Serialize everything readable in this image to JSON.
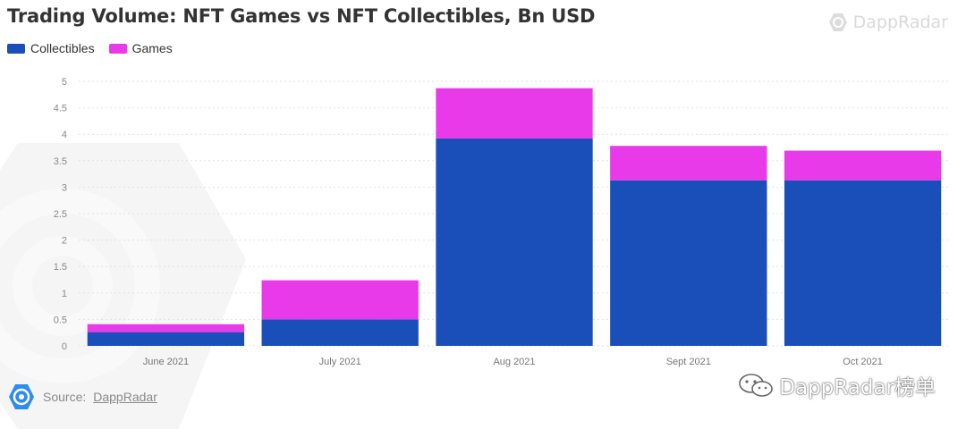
{
  "header": {
    "title": "Trading Volume: NFT Games vs NFT Collectibles, Bn USD",
    "brand": "DappRadar"
  },
  "chart_data": {
    "type": "bar",
    "stacked": true,
    "categories": [
      "June 2021",
      "July 2021",
      "Aug 2021",
      "Sept 2021",
      "Oct 2021"
    ],
    "series": [
      {
        "name": "Collectibles",
        "color": "#1a4fba",
        "values": [
          0.26,
          0.5,
          3.92,
          3.13,
          3.13
        ]
      },
      {
        "name": "Games",
        "color": "#e83ae8",
        "values": [
          0.15,
          0.74,
          0.95,
          0.65,
          0.56
        ]
      }
    ],
    "yticks": [
      "0",
      "0.5",
      "1",
      "1.5",
      "2",
      "2.5",
      "3",
      "3.5",
      "4",
      "4.5",
      "5"
    ],
    "ylim": [
      0,
      5
    ],
    "grid": true,
    "legend_position": "top-left"
  },
  "footer": {
    "source_prefix": "Source:",
    "source_link": "DappRadar",
    "wechat_label": "DappRadar榜单"
  },
  "icons": {
    "brand": "dappradar-logo-icon",
    "source": "dappradar-logo-icon",
    "wechat": "wechat-icon"
  }
}
